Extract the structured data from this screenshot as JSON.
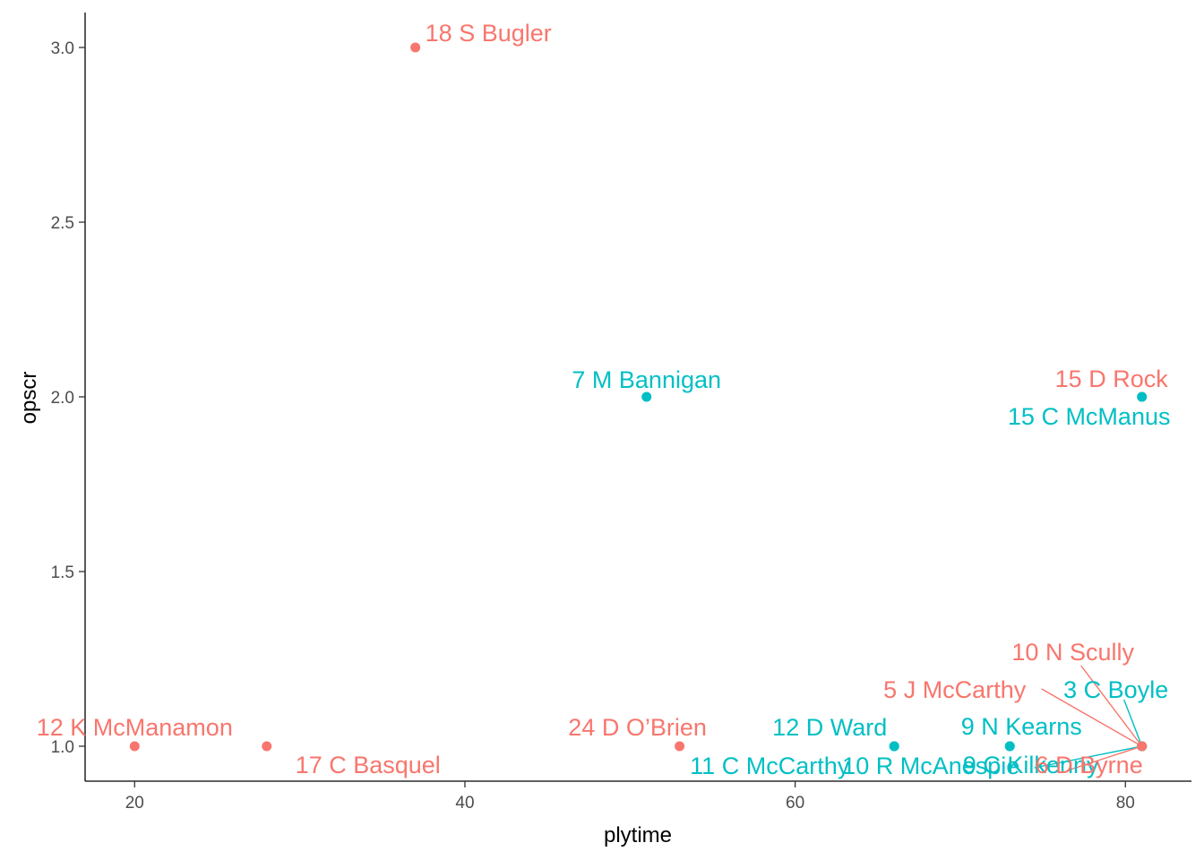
{
  "chart_data": {
    "type": "scatter",
    "xlabel": "plytime",
    "ylabel": "opscr",
    "x_ticks": [
      20,
      40,
      60,
      80
    ],
    "x_tick_labels": [
      "20",
      "40",
      "60",
      "80"
    ],
    "y_ticks": [
      1.0,
      1.5,
      2.0,
      2.5,
      3.0
    ],
    "y_tick_labels": [
      "1.0",
      "1.5",
      "2.0",
      "2.5",
      "3.0"
    ],
    "xlim": [
      17,
      84
    ],
    "ylim": [
      0.9,
      3.1
    ],
    "grid": false,
    "legend": "none",
    "colors": {
      "group_a": "#F8766D",
      "group_b": "#00BFC4"
    },
    "points": [
      {
        "x": 37,
        "y": 3.0,
        "label": "18  S Bugler",
        "color": "#F8766D"
      },
      {
        "x": 51,
        "y": 2.0,
        "label": "7  M Bannigan",
        "color": "#00BFC4"
      },
      {
        "x": 81,
        "y": 2.0,
        "label": "15  D Rock",
        "color": "#F8766D"
      },
      {
        "x": 81,
        "y": 2.0,
        "label": "15  C McManus",
        "color": "#00BFC4"
      },
      {
        "x": 20,
        "y": 1.0,
        "label": "12  K McManamon",
        "color": "#F8766D"
      },
      {
        "x": 28,
        "y": 1.0,
        "label": "17  C Basquel",
        "color": "#F8766D"
      },
      {
        "x": 53,
        "y": 1.0,
        "label": "24  D O’Brien",
        "color": "#F8766D"
      },
      {
        "x": 66,
        "y": 1.0,
        "label": "12  D Ward",
        "color": "#00BFC4"
      },
      {
        "x": 66,
        "y": 1.0,
        "label": "11  C McCarthy",
        "color": "#00BFC4"
      },
      {
        "x": 73,
        "y": 1.0,
        "label": "9  N Kearns",
        "color": "#00BFC4"
      },
      {
        "x": 73,
        "y": 1.0,
        "label": "10  R McAnespie",
        "color": "#00BFC4"
      },
      {
        "x": 81,
        "y": 1.0,
        "label": "10  N Scully",
        "color": "#F8766D"
      },
      {
        "x": 81,
        "y": 1.0,
        "label": "5  J McCarthy",
        "color": "#F8766D"
      },
      {
        "x": 81,
        "y": 1.0,
        "label": "3  C Boyle",
        "color": "#00BFC4"
      },
      {
        "x": 81,
        "y": 1.0,
        "label": "9  C Kilkenny",
        "color": "#00BFC4"
      },
      {
        "x": 81,
        "y": 1.0,
        "label": "6  D Byrne",
        "color": "#F8766D"
      }
    ]
  }
}
